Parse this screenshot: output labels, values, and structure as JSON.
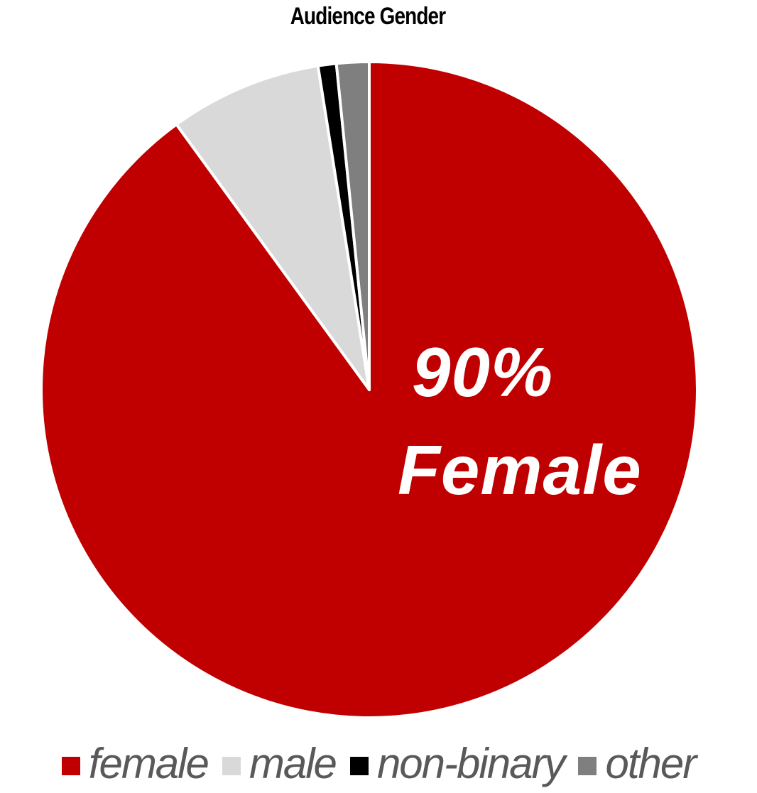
{
  "chart_data": {
    "type": "pie",
    "title": "Audience Gender",
    "slices": [
      {
        "label": "female",
        "value": 90,
        "color": "#c00000"
      },
      {
        "label": "male",
        "value": 7.5,
        "color": "#d9d9d9"
      },
      {
        "label": "non-binary",
        "value": 0.9,
        "color": "#000000"
      },
      {
        "label": "other",
        "value": 1.6,
        "color": "#7f7f7f"
      }
    ],
    "callout": {
      "line1": "90%",
      "line2": "Female"
    },
    "legend_position": "bottom",
    "legend": [
      "female",
      "male",
      "non-binary",
      "other"
    ]
  }
}
